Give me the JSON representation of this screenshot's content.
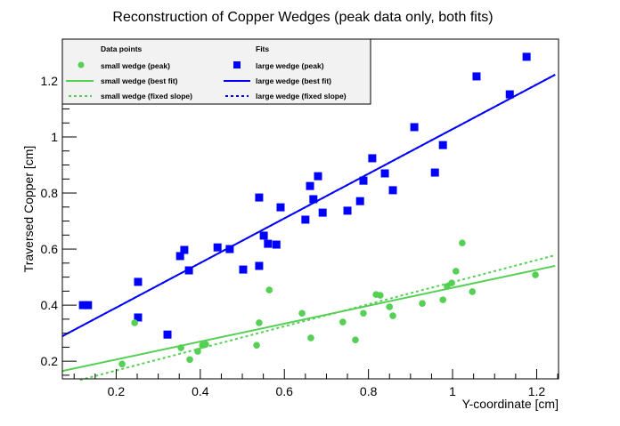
{
  "chart_data": {
    "type": "scatter",
    "title": "Reconstruction of Copper Wedges (peak data only, both fits)",
    "xlabel": "Y-coordinate [cm]",
    "ylabel": "Traversed Copper [cm]",
    "xlim": [
      0.072,
      1.252
    ],
    "ylim": [
      0.137,
      1.349
    ],
    "xticks": [
      0.2,
      0.4,
      0.6,
      0.8,
      1,
      1.2
    ],
    "xtick_labels": [
      "0.2",
      "0.4",
      "0.6",
      "0.8",
      "1",
      "1.2"
    ],
    "yticks": [
      0.2,
      0.4,
      0.6,
      0.8,
      1,
      1.2
    ],
    "ytick_labels": [
      "0.2",
      "0.4",
      "0.6",
      "0.8",
      "1",
      "1.2"
    ],
    "minor_step": 0.05,
    "grid": false,
    "legend": {
      "placement": "top-left",
      "headers": [
        "Data points",
        "Fits"
      ],
      "entries": [
        "small wedge (peak)",
        "large wedge (peak)",
        "small wedge (best fit)",
        "large wedge (best fit)",
        "small wedge (fixed slope)",
        "large wedge (fixed slope)"
      ]
    },
    "series": [
      {
        "name": "large wedge (peak)",
        "marker": "square",
        "color": "#0000ff",
        "x": [
          0.121,
          0.133,
          0.252,
          0.252,
          0.322,
          0.352,
          0.362,
          0.373,
          0.441,
          0.47,
          0.502,
          0.54,
          0.54,
          0.551,
          0.561,
          0.581,
          0.591,
          0.65,
          0.661,
          0.669,
          0.68,
          0.691,
          0.75,
          0.78,
          0.788,
          0.809,
          0.839,
          0.858,
          0.909,
          0.958,
          0.977,
          1.057,
          1.136,
          1.176
        ],
        "y": [
          0.4,
          0.4,
          0.483,
          0.356,
          0.295,
          0.575,
          0.597,
          0.524,
          0.606,
          0.6,
          0.527,
          0.784,
          0.54,
          0.648,
          0.619,
          0.616,
          0.749,
          0.705,
          0.825,
          0.778,
          0.86,
          0.73,
          0.737,
          0.771,
          0.844,
          0.924,
          0.87,
          0.81,
          1.035,
          0.873,
          0.971,
          1.216,
          1.152,
          1.286
        ]
      },
      {
        "name": "small wedge (peak)",
        "marker": "circle",
        "color": "#55d055",
        "x": [
          0.214,
          0.244,
          0.354,
          0.375,
          0.394,
          0.405,
          0.413,
          0.534,
          0.54,
          0.564,
          0.642,
          0.663,
          0.739,
          0.769,
          0.788,
          0.818,
          0.828,
          0.85,
          0.858,
          0.928,
          0.977,
          0.987,
          0.998,
          1.008,
          1.023,
          1.047,
          1.197
        ],
        "y": [
          0.19,
          0.337,
          0.248,
          0.206,
          0.235,
          0.257,
          0.26,
          0.257,
          0.337,
          0.454,
          0.371,
          0.283,
          0.34,
          0.276,
          0.371,
          0.438,
          0.435,
          0.394,
          0.362,
          0.406,
          0.419,
          0.467,
          0.479,
          0.521,
          0.622,
          0.448,
          0.508
        ]
      }
    ],
    "fits": [
      {
        "name": "large wedge (best fit)",
        "color": "#0000ff",
        "style": "solid",
        "slope": 0.796,
        "intercept": 0.232,
        "x_range": [
          0.072,
          1.244
        ]
      },
      {
        "name": "large wedge (fixed slope)",
        "color": "#0000ff",
        "style": "dotted",
        "slope": 0.796,
        "intercept": 0.232,
        "x_range": [
          0.072,
          1.244
        ]
      },
      {
        "name": "small wedge (best fit)",
        "color": "#55d055",
        "style": "solid",
        "slope": 0.32,
        "intercept": 0.142,
        "x_range": [
          0.072,
          1.244
        ]
      },
      {
        "name": "small wedge (fixed slope)",
        "color": "#55d055",
        "style": "dotted",
        "slope": 0.394,
        "intercept": 0.088,
        "x_range": [
          0.114,
          1.244
        ]
      }
    ]
  }
}
